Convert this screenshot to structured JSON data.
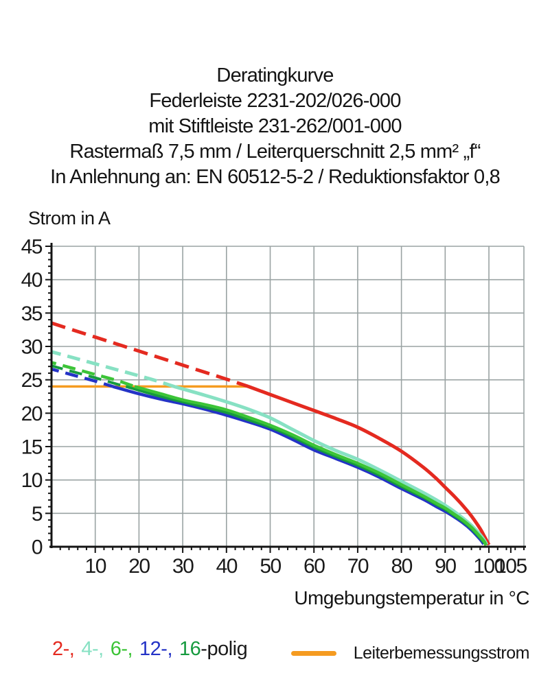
{
  "title_block": {
    "lines": [
      "Deratingkurve",
      "Federleiste 2231-202/026-000",
      "mit Stiftleiste 231-262/001-000",
      "Rastermaß 7,5 mm / Leiterquerschnitt 2,5 mm² „f“",
      "In Anlehnung an: EN 60512-5-2 / Reduktionsfaktor 0,8"
    ]
  },
  "chart_data": {
    "type": "line",
    "title": "Deratingkurve Federleiste 2231-202/026-000 mit Stiftleiste 231-262/001-000",
    "xlabel": "Umgebungstemperatur in °C",
    "ylabel": "Strom in A",
    "xlim": [
      0,
      108
    ],
    "ylim": [
      0,
      45
    ],
    "x_tick_labels": [
      10,
      20,
      30,
      40,
      50,
      60,
      70,
      80,
      90,
      100,
      105
    ],
    "y_tick_labels": [
      0,
      5,
      10,
      15,
      20,
      25,
      30,
      35,
      40,
      45
    ],
    "x_minor_step": 2,
    "y_minor_step": 1,
    "grid": {
      "on": true,
      "x_step": 10,
      "y_step": 5,
      "color": "#9aa3a3"
    },
    "axis_color": "#141414",
    "tick_label_color": "#1a1a1a",
    "rated_current_line": {
      "label": "Leiterbemessungsstrom",
      "color": "#f59b20",
      "y": 24,
      "x_start": 0,
      "x_end": 45.3
    },
    "legend_position": "bottom",
    "series": [
      {
        "name": "2-polig",
        "color": "#e42a20",
        "width": 5,
        "z": 1,
        "dash_until": 45,
        "dash": "21 10.5",
        "dash_offset": 0,
        "points": [
          [
            0,
            33.5
          ],
          [
            5,
            32.45
          ],
          [
            10,
            31.4
          ],
          [
            15,
            30.35
          ],
          [
            20,
            29.3
          ],
          [
            25,
            28.25
          ],
          [
            30,
            27.2
          ],
          [
            35,
            26.15
          ],
          [
            40,
            25.1
          ],
          [
            45,
            24.0
          ],
          [
            50,
            22.8
          ],
          [
            55,
            21.6
          ],
          [
            60,
            20.4
          ],
          [
            65,
            19.2
          ],
          [
            70,
            17.9
          ],
          [
            75,
            16.2
          ],
          [
            80,
            14.3
          ],
          [
            85,
            11.9
          ],
          [
            88,
            10.2
          ],
          [
            90,
            8.9
          ],
          [
            92,
            7.6
          ],
          [
            94,
            6.2
          ],
          [
            96,
            4.6
          ],
          [
            98,
            2.7
          ],
          [
            99,
            1.5
          ],
          [
            100,
            0.3
          ]
        ]
      },
      {
        "name": "4-polig",
        "color": "#87e1c3",
        "width": 5,
        "z": 2,
        "dash_until": 28,
        "dash": "19 10",
        "dash_offset": 5,
        "points": [
          [
            0,
            29.2
          ],
          [
            5,
            28.3
          ],
          [
            10,
            27.4
          ],
          [
            15,
            26.5
          ],
          [
            20,
            25.6
          ],
          [
            24,
            24.85
          ],
          [
            28,
            24.0
          ],
          [
            35,
            22.7
          ],
          [
            40,
            21.7
          ],
          [
            45,
            20.6
          ],
          [
            50,
            19.3
          ],
          [
            55,
            17.6
          ],
          [
            60,
            15.9
          ],
          [
            65,
            14.4
          ],
          [
            70,
            13.1
          ],
          [
            75,
            11.5
          ],
          [
            80,
            9.8
          ],
          [
            85,
            8.1
          ],
          [
            88,
            7.0
          ],
          [
            90,
            6.2
          ],
          [
            92,
            5.3
          ],
          [
            94,
            4.3
          ],
          [
            96,
            3.2
          ],
          [
            98,
            1.8
          ],
          [
            99,
            0.9
          ],
          [
            99.5,
            0.3
          ]
        ]
      },
      {
        "name": "6-polig",
        "color": "#3cc437",
        "width": 4.5,
        "z": 5,
        "dash_until": 19,
        "dash": "19 10",
        "dash_offset": 12,
        "points": [
          [
            0,
            27.6
          ],
          [
            5,
            26.7
          ],
          [
            10,
            25.8
          ],
          [
            15,
            24.9
          ],
          [
            19,
            24.0
          ],
          [
            25,
            22.9
          ],
          [
            30,
            22.0
          ],
          [
            35,
            21.3
          ],
          [
            40,
            20.5
          ],
          [
            45,
            19.4
          ],
          [
            50,
            18.2
          ],
          [
            55,
            16.8
          ],
          [
            60,
            15.2
          ],
          [
            65,
            13.8
          ],
          [
            70,
            12.5
          ],
          [
            75,
            11.0
          ],
          [
            80,
            9.3
          ],
          [
            85,
            7.6
          ],
          [
            88,
            6.5
          ],
          [
            90,
            5.8
          ],
          [
            92,
            4.9
          ],
          [
            94,
            4.0
          ],
          [
            96,
            2.9
          ],
          [
            98,
            1.5
          ],
          [
            99,
            0.7
          ],
          [
            99.3,
            0.2
          ]
        ]
      },
      {
        "name": "12-polig",
        "color": "#2433c6",
        "width": 4.5,
        "z": 3,
        "dash_until": 14,
        "dash": "19 10",
        "dash_offset": 8,
        "points": [
          [
            0,
            26.6
          ],
          [
            5,
            25.7
          ],
          [
            10,
            24.8
          ],
          [
            14,
            24.0
          ],
          [
            20,
            22.9
          ],
          [
            25,
            22.1
          ],
          [
            30,
            21.4
          ],
          [
            35,
            20.6
          ],
          [
            40,
            19.7
          ],
          [
            45,
            18.7
          ],
          [
            50,
            17.6
          ],
          [
            55,
            16.1
          ],
          [
            60,
            14.5
          ],
          [
            65,
            13.2
          ],
          [
            70,
            11.9
          ],
          [
            75,
            10.4
          ],
          [
            80,
            8.7
          ],
          [
            85,
            7.1
          ],
          [
            88,
            6.0
          ],
          [
            90,
            5.3
          ],
          [
            92,
            4.5
          ],
          [
            94,
            3.6
          ],
          [
            96,
            2.5
          ],
          [
            98,
            1.1
          ],
          [
            98.8,
            0.4
          ]
        ]
      },
      {
        "name": "16-polig",
        "color": "#169a3e",
        "width": 4,
        "z": 4,
        "dash_until": 17,
        "dash": "19 10",
        "dash_offset": 2,
        "points": [
          [
            0,
            27.1
          ],
          [
            5,
            26.2
          ],
          [
            10,
            25.3
          ],
          [
            15,
            24.35
          ],
          [
            17,
            24.0
          ],
          [
            25,
            22.5
          ],
          [
            30,
            21.7
          ],
          [
            35,
            20.9
          ],
          [
            40,
            20.1
          ],
          [
            45,
            19.0
          ],
          [
            50,
            17.9
          ],
          [
            55,
            16.5
          ],
          [
            60,
            14.9
          ],
          [
            65,
            13.5
          ],
          [
            70,
            12.2
          ],
          [
            75,
            10.7
          ],
          [
            80,
            9.0
          ],
          [
            85,
            7.4
          ],
          [
            88,
            6.3
          ],
          [
            90,
            5.6
          ],
          [
            92,
            4.7
          ],
          [
            94,
            3.8
          ],
          [
            96,
            2.7
          ],
          [
            98,
            1.3
          ],
          [
            99,
            0.5
          ]
        ]
      }
    ]
  },
  "legend": {
    "poles": {
      "items": [
        {
          "label": "2-,",
          "color": "#e42a20"
        },
        {
          "label": "4-,",
          "color": "#87e1c3"
        },
        {
          "label": "6-,",
          "color": "#3cc437"
        },
        {
          "label": "12-,",
          "color": "#2433c6"
        },
        {
          "label": "16",
          "color": "#169a3e"
        }
      ],
      "suffix": "-polig"
    },
    "rated": {
      "label": "Leiterbemessungsstrom",
      "color": "#f59b20"
    }
  }
}
